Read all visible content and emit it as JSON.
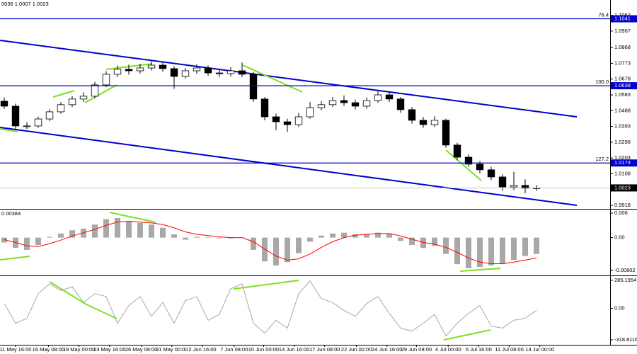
{
  "chart_data": [
    {
      "type": "candlestick",
      "title": "0036 1.0007 1.0023",
      "color": "#000000",
      "xlim": [
        -0.375,
        53.5
      ],
      "ylim": [
        0.9897,
        1.1154
      ],
      "yticks": [
        1.1062,
        1.0967,
        1.0868,
        1.0773,
        1.0678,
        1.0583,
        1.0488,
        1.0393,
        1.0298,
        1.0203,
        1.0108,
        0.9918
      ],
      "levels": [
        {
          "value": 1.1041,
          "label": "76.4"
        },
        {
          "value": 1.0638,
          "label": "100.0"
        },
        {
          "value": 1.0173,
          "label": "127.2"
        }
      ],
      "level_color": "#0000cc",
      "open": [
        1.0545,
        1.0515,
        1.0396,
        1.0396,
        1.0438,
        1.0481,
        1.0524,
        1.0558,
        1.0575,
        1.0643,
        1.0707,
        1.0737,
        1.0728,
        1.0745,
        1.0762,
        1.0741,
        1.0694,
        1.0728,
        1.0745,
        1.0715,
        1.0711,
        1.0728,
        1.0707,
        1.0558,
        1.0451,
        1.0421,
        1.0404,
        1.0451,
        1.0506,
        1.0524,
        1.0549,
        1.0536,
        1.0515,
        1.0549,
        1.0583,
        1.0558,
        1.0494,
        1.043,
        1.0404,
        1.043,
        1.0281,
        1.0208,
        1.0166,
        1.0132,
        1.0089,
        1.0029,
        1.0038,
        1.0021
      ],
      "high": [
        1.0568,
        1.053,
        1.0418,
        1.0452,
        1.0497,
        1.054,
        1.0575,
        1.0598,
        1.066,
        1.0725,
        1.076,
        1.0765,
        1.077,
        1.0785,
        1.0778,
        1.0755,
        1.0745,
        1.0768,
        1.076,
        1.0735,
        1.075,
        1.0778,
        1.072,
        1.057,
        1.047,
        1.044,
        1.0475,
        1.054,
        1.0545,
        1.057,
        1.058,
        1.0555,
        1.0568,
        1.0606,
        1.06,
        1.057,
        1.051,
        1.045,
        1.0455,
        1.044,
        1.0295,
        1.0225,
        1.0185,
        1.015,
        1.0105,
        1.012,
        1.0075,
        1.004
      ],
      "low": [
        1.0498,
        1.0372,
        1.0378,
        1.0385,
        1.0425,
        1.047,
        1.051,
        1.054,
        1.0562,
        1.063,
        1.069,
        1.0705,
        1.0712,
        1.073,
        1.0722,
        1.062,
        1.068,
        1.071,
        1.0698,
        1.069,
        1.0695,
        1.069,
        1.054,
        1.043,
        1.037,
        1.036,
        1.039,
        1.044,
        1.049,
        1.051,
        1.0515,
        1.0495,
        1.05,
        1.0535,
        1.054,
        1.0475,
        1.041,
        1.0385,
        1.039,
        1.0265,
        1.019,
        1.015,
        1.011,
        1.007,
        1.0005,
        1.001,
        0.999,
        1.0005
      ],
      "close": [
        1.0515,
        1.0396,
        1.0396,
        1.0438,
        1.0481,
        1.0524,
        1.0558,
        1.0575,
        1.0643,
        1.0707,
        1.0737,
        1.0728,
        1.0745,
        1.0762,
        1.0741,
        1.0694,
        1.0728,
        1.0745,
        1.0715,
        1.0711,
        1.0728,
        1.0707,
        1.0558,
        1.0451,
        1.0421,
        1.0404,
        1.0451,
        1.0506,
        1.0524,
        1.0549,
        1.0536,
        1.0515,
        1.0549,
        1.0583,
        1.0558,
        1.0494,
        1.043,
        1.0404,
        1.043,
        1.0281,
        1.0208,
        1.0166,
        1.0132,
        1.0089,
        1.0029,
        1.0038,
        1.0021,
        1.0023
      ]
    },
    {
      "type": "macd",
      "title": "0.00384",
      "color": "#a8a8a8",
      "line_color": "#ff0000",
      "xlim": [
        -0.375,
        53.5
      ],
      "ylim": [
        -0.00925,
        0.00686
      ],
      "yticks": [
        0.006,
        {
          "value": 0,
          "label": "0.00"
        },
        -0.00802
      ],
      "values": [
        -0.0012,
        -0.0025,
        -0.003,
        -0.0018,
        0.0002,
        0.001,
        0.0018,
        0.0022,
        0.0032,
        0.0045,
        0.0048,
        0.004,
        0.0036,
        0.0032,
        0.0024,
        0.0008,
        -0.0005,
        0.0002,
        0.0001,
        -0.0002,
        -0.0002,
        0,
        -0.003,
        -0.0058,
        -0.0068,
        -0.006,
        -0.0038,
        -0.001,
        0.0005,
        0.001,
        0.0012,
        0.0008,
        0.0008,
        0.0012,
        0.001,
        -0.0008,
        -0.0018,
        -0.0025,
        -0.002,
        -0.004,
        -0.0065,
        -0.0075,
        -0.0072,
        -0.0068,
        -0.0065,
        -0.0055,
        -0.0045,
        -0.004
      ],
      "line_values": [
        -0.0005,
        -0.0012,
        -0.002,
        -0.0022,
        -0.0015,
        -0.0006,
        0.0004,
        0.0012,
        0.002,
        0.003,
        0.0038,
        0.004,
        0.0038,
        0.0036,
        0.0032,
        0.0024,
        0.0014,
        0.0008,
        0.0005,
        0.0002,
        0,
        0,
        -0.001,
        -0.0028,
        -0.0045,
        -0.0055,
        -0.0052,
        -0.004,
        -0.0024,
        -0.001,
        0,
        0.0006,
        0.0008,
        0.001,
        0.001,
        0.0004,
        -0.0004,
        -0.0012,
        -0.0016,
        -0.0024,
        -0.0036,
        -0.005,
        -0.006,
        -0.0064,
        -0.0064,
        -0.006,
        -0.0055,
        -0.005
      ]
    },
    {
      "type": "line",
      "color": "#a8a8a8",
      "xlim": [
        -0.375,
        53.5
      ],
      "ylim": [
        -369,
        328
      ],
      "yticks": [
        285.1954,
        {
          "value": 0,
          "label": "0.00"
        },
        -318.8116
      ],
      "values": [
        50,
        -150,
        -100,
        150,
        250,
        180,
        220,
        60,
        150,
        120,
        -150,
        30,
        120,
        -80,
        60,
        -150,
        80,
        120,
        -120,
        -60,
        200,
        250,
        -150,
        -250,
        -120,
        -200,
        150,
        280,
        100,
        60,
        -20,
        -80,
        50,
        120,
        -50,
        -200,
        -230,
        -150,
        -60,
        -280,
        -150,
        -50,
        30,
        -180,
        -200,
        -120,
        -100,
        -20
      ],
      "xticks": [
        {
          "value": 1,
          "label": "11 May 16:00"
        },
        {
          "value": 3.9,
          "label": "16 May 08:00"
        },
        {
          "value": 6.6,
          "label": "19 May 00:00"
        },
        {
          "value": 9.3,
          "label": "23 May 16:00"
        },
        {
          "value": 12.1,
          "label": "26 May 08:00"
        },
        {
          "value": 14.8,
          "label": "31 May 00:00"
        },
        {
          "value": 17.5,
          "label": "2 Jun 16:00"
        },
        {
          "value": 20.3,
          "label": "7 Jun 08:00"
        },
        {
          "value": 22.9,
          "label": "10 Jun 00:00"
        },
        {
          "value": 25.6,
          "label": "14 Jun 16:00"
        },
        {
          "value": 28.3,
          "label": "17 Jun 08:00"
        },
        {
          "value": 31.1,
          "label": "22 Jun 00:00"
        },
        {
          "value": 33.8,
          "label": "24 Jun 16:00"
        },
        {
          "value": 36.4,
          "label": "29 Jun 08:00"
        },
        {
          "value": 39.2,
          "label": "4 Jul 00:00"
        },
        {
          "value": 41.9,
          "label": "6 Jul 16:00"
        },
        {
          "value": 44.6,
          "label": "11 Jul 08:00"
        },
        {
          "value": 47.3,
          "label": "14 Jul 00:00"
        }
      ]
    }
  ]
}
